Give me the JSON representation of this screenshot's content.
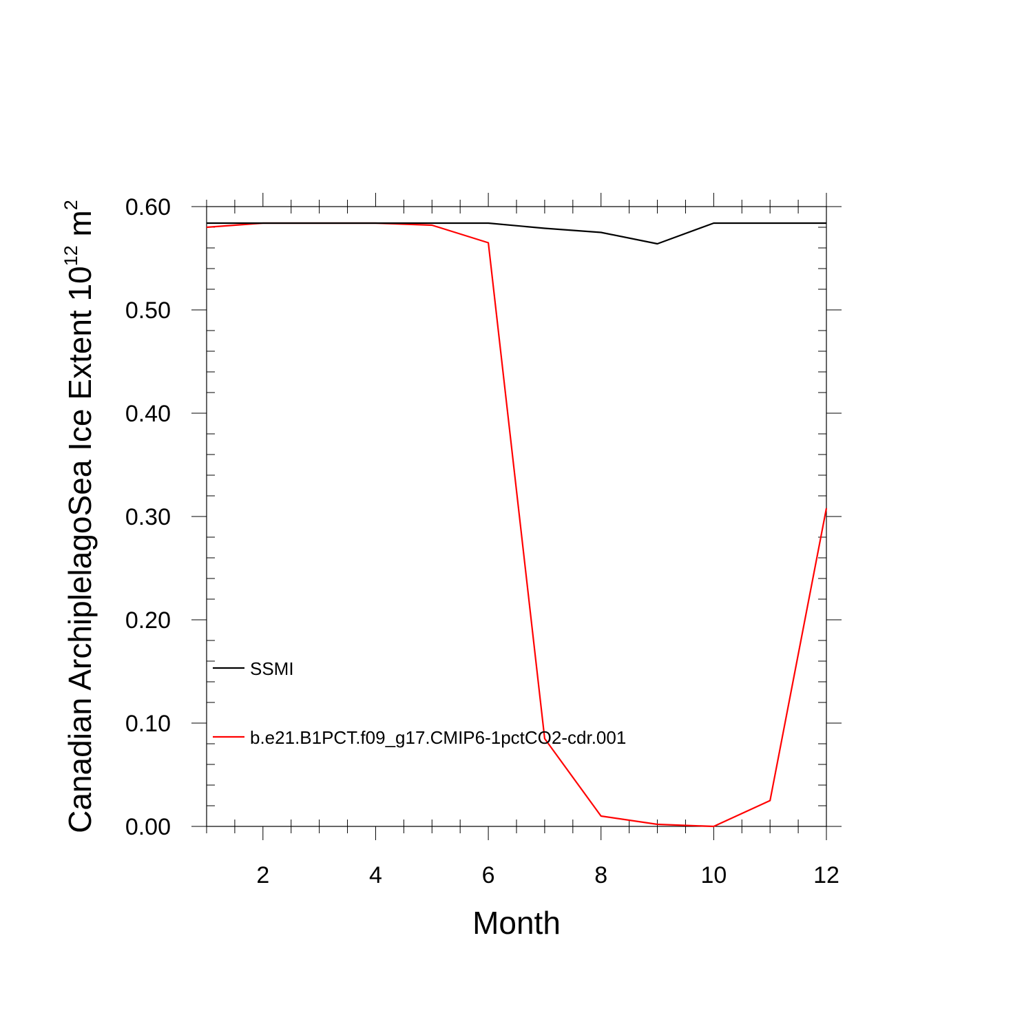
{
  "chart_data": {
    "type": "line",
    "title": "",
    "xlabel": "Month",
    "ylabel": {
      "main": "Canadian ArchiplelagoSea Ice Extent 10",
      "exponent": "12",
      "unit": " m",
      "unit_exponent": "2"
    },
    "xlim": [
      1,
      12
    ],
    "ylim": [
      0,
      0.6
    ],
    "x_ticks": [
      2,
      4,
      6,
      8,
      10,
      12
    ],
    "x_tick_labels": [
      "2",
      "4",
      "6",
      "8",
      "10",
      "12"
    ],
    "y_ticks": [
      0,
      0.1,
      0.2,
      0.3,
      0.4,
      0.5,
      0.6
    ],
    "y_tick_labels": [
      "0.00",
      "0.10",
      "0.20",
      "0.30",
      "0.40",
      "0.50",
      "0.60"
    ],
    "grid": false,
    "legend_placement": "lower-left",
    "x": [
      1,
      2,
      3,
      4,
      5,
      6,
      7,
      8,
      9,
      10,
      11,
      12
    ],
    "series": [
      {
        "name": "SSMI",
        "color": "#000000",
        "values": [
          0.584,
          0.584,
          0.584,
          0.584,
          0.584,
          0.584,
          0.579,
          0.575,
          0.564,
          0.584,
          0.584,
          0.584
        ]
      },
      {
        "name": "b.e21.B1PCT.f09_g17.CMIP6-1pctCO2-cdr.001",
        "color": "#ff0000",
        "values": [
          0.58,
          0.584,
          0.584,
          0.584,
          0.582,
          0.565,
          0.085,
          0.01,
          0.002,
          0.0,
          0.025,
          0.308
        ]
      }
    ]
  }
}
